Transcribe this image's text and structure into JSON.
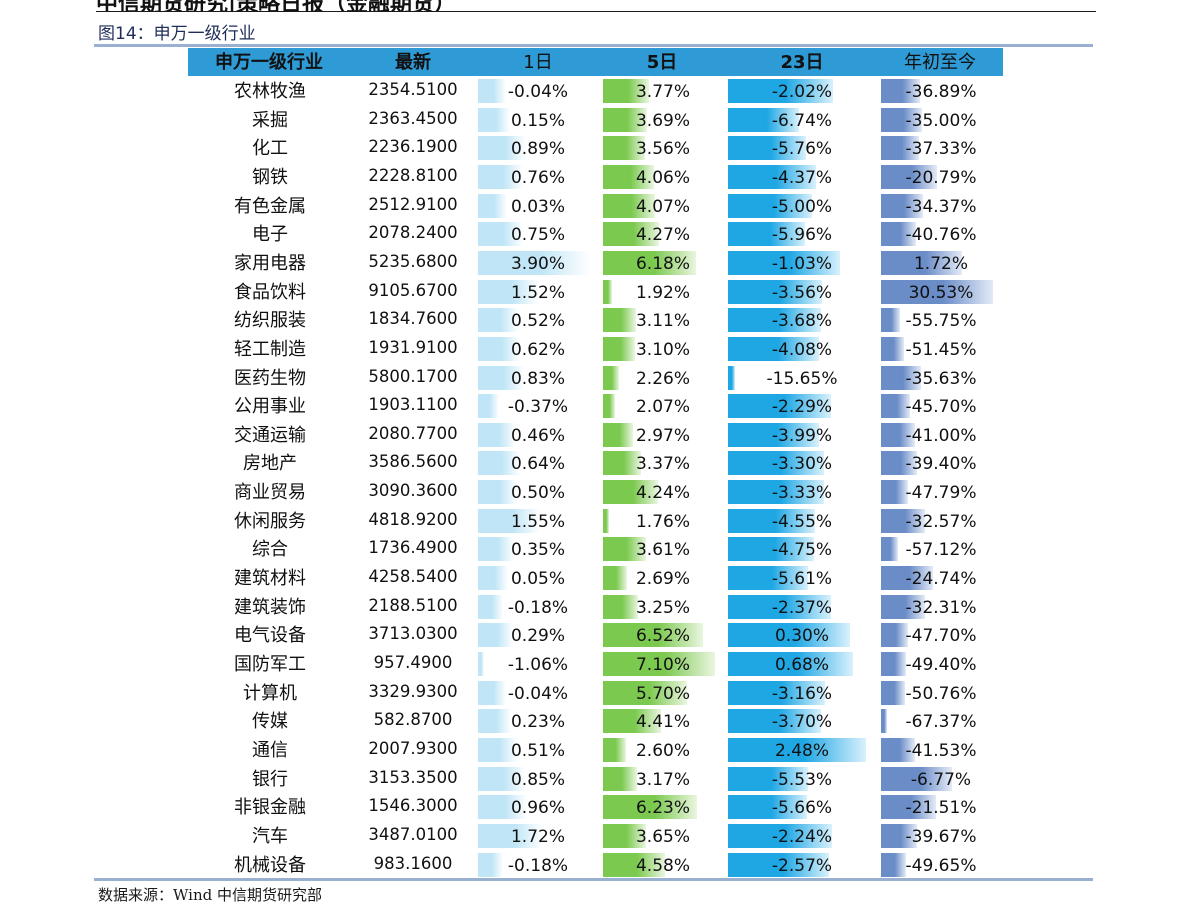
{
  "top_header": "中信期货研究|策略日报（金融期货）",
  "figure_title": "图14：申万一级行业",
  "source": "数据来源：Wind    中信期货研究部",
  "columns": {
    "name": "申万一级行业",
    "latest": "最新",
    "d1": "1日",
    "d5": "5日",
    "d23": "23日",
    "ytd": "年初至今"
  },
  "colors": {
    "header_bg": "#2e9bd6",
    "d1_bar": "#bfe5f6",
    "d5_bar": "#7cc950",
    "d23_bar": "#1fa7e4",
    "ytd_bar": "#6a8cc7",
    "rule": "#9ab0d0"
  },
  "rows": [
    {
      "name": "农林牧渔",
      "latest": "2354.5100",
      "d1": "-0.04%",
      "d5": "3.77%",
      "d23": "-2.02%",
      "ytd": "-36.89%"
    },
    {
      "name": "采掘",
      "latest": "2363.4500",
      "d1": "0.15%",
      "d5": "3.69%",
      "d23": "-6.74%",
      "ytd": "-35.00%"
    },
    {
      "name": "化工",
      "latest": "2236.1900",
      "d1": "0.89%",
      "d5": "3.56%",
      "d23": "-5.76%",
      "ytd": "-37.33%"
    },
    {
      "name": "钢铁",
      "latest": "2228.8100",
      "d1": "0.76%",
      "d5": "4.06%",
      "d23": "-4.37%",
      "ytd": "-20.79%"
    },
    {
      "name": "有色金属",
      "latest": "2512.9100",
      "d1": "0.03%",
      "d5": "4.07%",
      "d23": "-5.00%",
      "ytd": "-34.37%"
    },
    {
      "name": "电子",
      "latest": "2078.2400",
      "d1": "0.75%",
      "d5": "4.27%",
      "d23": "-5.96%",
      "ytd": "-40.76%"
    },
    {
      "name": "家用电器",
      "latest": "5235.6800",
      "d1": "3.90%",
      "d5": "6.18%",
      "d23": "-1.03%",
      "ytd": "1.72%"
    },
    {
      "name": "食品饮料",
      "latest": "9105.6700",
      "d1": "1.52%",
      "d5": "1.92%",
      "d23": "-3.56%",
      "ytd": "30.53%"
    },
    {
      "name": "纺织服装",
      "latest": "1834.7600",
      "d1": "0.52%",
      "d5": "3.11%",
      "d23": "-3.68%",
      "ytd": "-55.75%"
    },
    {
      "name": "轻工制造",
      "latest": "1931.9100",
      "d1": "0.62%",
      "d5": "3.10%",
      "d23": "-4.08%",
      "ytd": "-51.45%"
    },
    {
      "name": "医药生物",
      "latest": "5800.1700",
      "d1": "0.83%",
      "d5": "2.26%",
      "d23": "-15.65%",
      "ytd": "-35.63%"
    },
    {
      "name": "公用事业",
      "latest": "1903.1100",
      "d1": "-0.37%",
      "d5": "2.07%",
      "d23": "-2.29%",
      "ytd": "-45.70%"
    },
    {
      "name": "交通运输",
      "latest": "2080.7700",
      "d1": "0.46%",
      "d5": "2.97%",
      "d23": "-3.99%",
      "ytd": "-41.00%"
    },
    {
      "name": "房地产",
      "latest": "3586.5600",
      "d1": "0.64%",
      "d5": "3.37%",
      "d23": "-3.30%",
      "ytd": "-39.40%"
    },
    {
      "name": "商业贸易",
      "latest": "3090.3600",
      "d1": "0.50%",
      "d5": "4.24%",
      "d23": "-3.33%",
      "ytd": "-47.79%"
    },
    {
      "name": "休闲服务",
      "latest": "4818.9200",
      "d1": "1.55%",
      "d5": "1.76%",
      "d23": "-4.55%",
      "ytd": "-32.57%"
    },
    {
      "name": "综合",
      "latest": "1736.4900",
      "d1": "0.35%",
      "d5": "3.61%",
      "d23": "-4.75%",
      "ytd": "-57.12%"
    },
    {
      "name": "建筑材料",
      "latest": "4258.5400",
      "d1": "0.05%",
      "d5": "2.69%",
      "d23": "-5.61%",
      "ytd": "-24.74%"
    },
    {
      "name": "建筑装饰",
      "latest": "2188.5100",
      "d1": "-0.18%",
      "d5": "3.25%",
      "d23": "-2.37%",
      "ytd": "-32.31%"
    },
    {
      "name": "电气设备",
      "latest": "3713.0300",
      "d1": "0.29%",
      "d5": "6.52%",
      "d23": "0.30%",
      "ytd": "-47.70%"
    },
    {
      "name": "国防军工",
      "latest": "957.4900",
      "d1": "-1.06%",
      "d5": "7.10%",
      "d23": "0.68%",
      "ytd": "-49.40%"
    },
    {
      "name": "计算机",
      "latest": "3329.9300",
      "d1": "-0.04%",
      "d5": "5.70%",
      "d23": "-3.16%",
      "ytd": "-50.76%"
    },
    {
      "name": "传媒",
      "latest": "582.8700",
      "d1": "0.23%",
      "d5": "4.41%",
      "d23": "-3.70%",
      "ytd": "-67.37%"
    },
    {
      "name": "通信",
      "latest": "2007.9300",
      "d1": "0.51%",
      "d5": "2.60%",
      "d23": "2.48%",
      "ytd": "-41.53%"
    },
    {
      "name": "银行",
      "latest": "3153.3500",
      "d1": "0.85%",
      "d5": "3.17%",
      "d23": "-5.53%",
      "ytd": "-6.77%"
    },
    {
      "name": "非银金融",
      "latest": "1546.3000",
      "d1": "0.96%",
      "d5": "6.23%",
      "d23": "-5.66%",
      "ytd": "-21.51%"
    },
    {
      "name": "汽车",
      "latest": "3487.0100",
      "d1": "1.72%",
      "d5": "3.65%",
      "d23": "-2.24%",
      "ytd": "-39.67%"
    },
    {
      "name": "机械设备",
      "latest": "983.1600",
      "d1": "-0.18%",
      "d5": "4.58%",
      "d23": "-2.57%",
      "ytd": "-49.65%"
    }
  ]
}
